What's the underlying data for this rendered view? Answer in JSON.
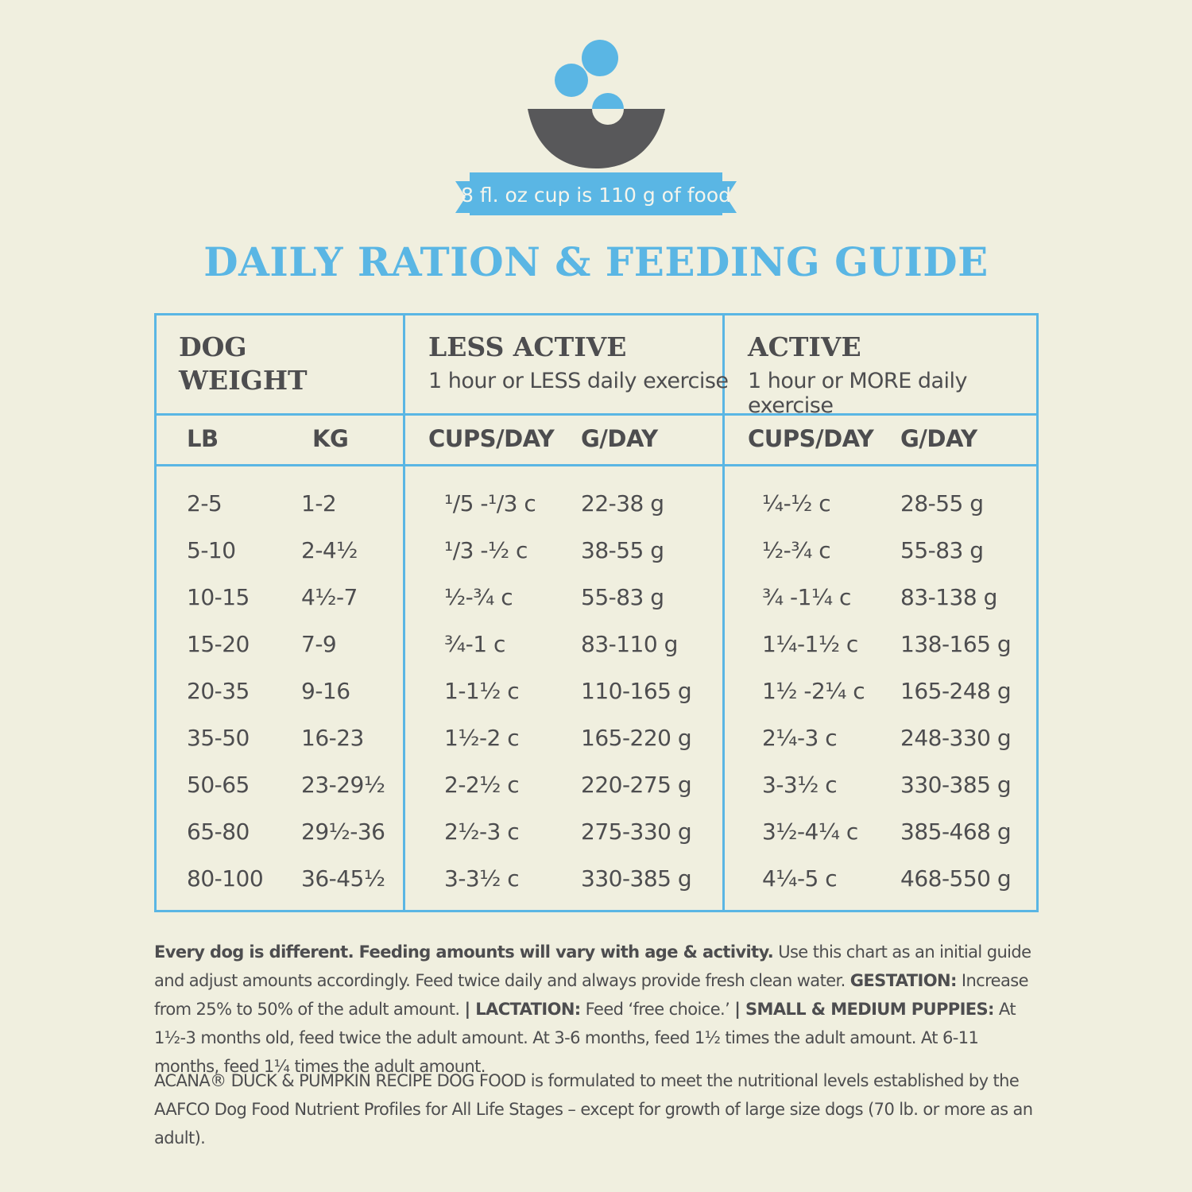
{
  "banner": {
    "text": "8 fl. oz cup is 110 g of food"
  },
  "title": "DAILY RATION & FEEDING GUIDE",
  "colors": {
    "accent": "#5ab6e4",
    "text": "#4d4d4f",
    "bowl": "#58585a",
    "background": "#f0efdf"
  },
  "icons": {
    "bowl": "bowl-with-kibble-icon"
  },
  "table": {
    "groups": [
      {
        "title": "DOG\nWEIGHT",
        "subtitle": ""
      },
      {
        "title": "LESS ACTIVE",
        "subtitle": "1 hour or LESS daily exercise"
      },
      {
        "title": "ACTIVE",
        "subtitle": "1 hour or MORE daily exercise"
      }
    ],
    "columns": [
      "LB",
      "KG",
      "CUPS/DAY",
      "G/DAY",
      "CUPS/DAY",
      "G/DAY"
    ],
    "rows": [
      [
        "2-5",
        "1-2",
        "¹/5 -¹/3 c",
        "22-38 g",
        "¼-½ c",
        "28-55 g"
      ],
      [
        "5-10",
        "2-4½",
        "¹/3 -½ c",
        "38-55 g",
        "½-¾ c",
        "55-83 g"
      ],
      [
        "10-15",
        "4½-7",
        "½-¾ c",
        "55-83 g",
        "¾ -1¼ c",
        "83-138 g"
      ],
      [
        "15-20",
        "7-9",
        "¾-1 c",
        "83-110 g",
        "1¼-1½ c",
        "138-165 g"
      ],
      [
        "20-35",
        "9-16",
        "1-1½ c",
        "110-165 g",
        "1½ -2¼ c",
        "165-248 g"
      ],
      [
        "35-50",
        "16-23",
        "1½-2 c",
        "165-220 g",
        "2¼-3 c",
        "248-330 g"
      ],
      [
        "50-65",
        "23-29½",
        "2-2½ c",
        "220-275 g",
        "3-3½ c",
        "330-385 g"
      ],
      [
        "65-80",
        "29½-36",
        "2½-3 c",
        "275-330 g",
        "3½-4¼ c",
        "385-468 g"
      ],
      [
        "80-100",
        "36-45½",
        "3-3½ c",
        "330-385 g",
        "4¼-5 c",
        "468-550 g"
      ]
    ]
  },
  "notes": {
    "lead_bold": "Every dog is different. Feeding amounts will vary with age & activity.",
    "lead_text": " Use this chart as an initial guide and adjust amounts accordingly. Feed twice daily and always provide fresh clean water. ",
    "gestation_label": "GESTATION:",
    "gestation_text": " Increase from 25% to 50% of the adult amount. ",
    "lactation_label": "| LACTATION:",
    "lactation_text": " Feed ‘free choice.’ ",
    "puppies_label": "| SMALL & MEDIUM PUPPIES:",
    "puppies_text": " At 1½-3 months old, feed twice the adult amount. At 3-6 months, feed 1½ times the adult amount. At 6-11 months, feed 1¼ times the adult amount."
  },
  "disclaimer": "ACANA® DUCK & PUMPKIN RECIPE DOG FOOD is formulated to meet the nutritional levels established by the AAFCO Dog Food Nutrient Profiles for All Life Stages – except for growth of large size dogs (70 lb. or more as an adult)."
}
